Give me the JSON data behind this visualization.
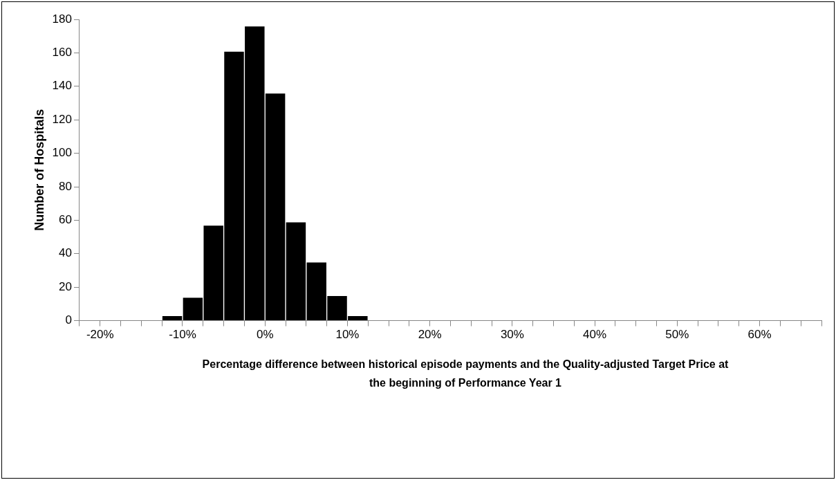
{
  "chart_data": {
    "type": "histogram",
    "xlabel": "Percentage difference between historical episode payments and the Quality-adjusted Target Price at the beginning of Performance Year 1",
    "ylabel": "Number of Hospitals",
    "bins": [
      -12.5,
      -10,
      -7.5,
      -5,
      -2.5,
      0,
      2.5,
      5,
      7.5,
      10,
      12.5
    ],
    "values": [
      3,
      14,
      57,
      161,
      176,
      136,
      59,
      35,
      15,
      3
    ],
    "color": "#000000",
    "xlim": [
      -22.5,
      67.5
    ],
    "xticks": [
      {
        "value": -22.5,
        "label": null
      },
      {
        "value": -20,
        "label": "-20%"
      },
      {
        "value": -17.5,
        "label": null
      },
      {
        "value": -15,
        "label": null
      },
      {
        "value": -12.5,
        "label": null
      },
      {
        "value": -10,
        "label": "-10%"
      },
      {
        "value": -7.5,
        "label": null
      },
      {
        "value": -5,
        "label": null
      },
      {
        "value": -2.5,
        "label": null
      },
      {
        "value": 0,
        "label": "0%"
      },
      {
        "value": 2.5,
        "label": null
      },
      {
        "value": 5,
        "label": null
      },
      {
        "value": 7.5,
        "label": null
      },
      {
        "value": 10,
        "label": "10%"
      },
      {
        "value": 12.5,
        "label": null
      },
      {
        "value": 15,
        "label": null
      },
      {
        "value": 17.5,
        "label": null
      },
      {
        "value": 20,
        "label": "20%"
      },
      {
        "value": 22.5,
        "label": null
      },
      {
        "value": 25,
        "label": null
      },
      {
        "value": 27.5,
        "label": null
      },
      {
        "value": 30,
        "label": "30%"
      },
      {
        "value": 32.5,
        "label": null
      },
      {
        "value": 35,
        "label": null
      },
      {
        "value": 37.5,
        "label": null
      },
      {
        "value": 40,
        "label": "40%"
      },
      {
        "value": 42.5,
        "label": null
      },
      {
        "value": 45,
        "label": null
      },
      {
        "value": 47.5,
        "label": null
      },
      {
        "value": 50,
        "label": "50%"
      },
      {
        "value": 52.5,
        "label": null
      },
      {
        "value": 55,
        "label": null
      },
      {
        "value": 57.5,
        "label": null
      },
      {
        "value": 60,
        "label": "60%"
      },
      {
        "value": 62.5,
        "label": null
      },
      {
        "value": 65,
        "label": null
      },
      {
        "value": 67.5,
        "label": null
      }
    ],
    "ylim": [
      0,
      180
    ],
    "yticks": [
      0,
      20,
      40,
      60,
      80,
      100,
      120,
      140,
      160,
      180
    ],
    "grid": false,
    "legend": false
  }
}
